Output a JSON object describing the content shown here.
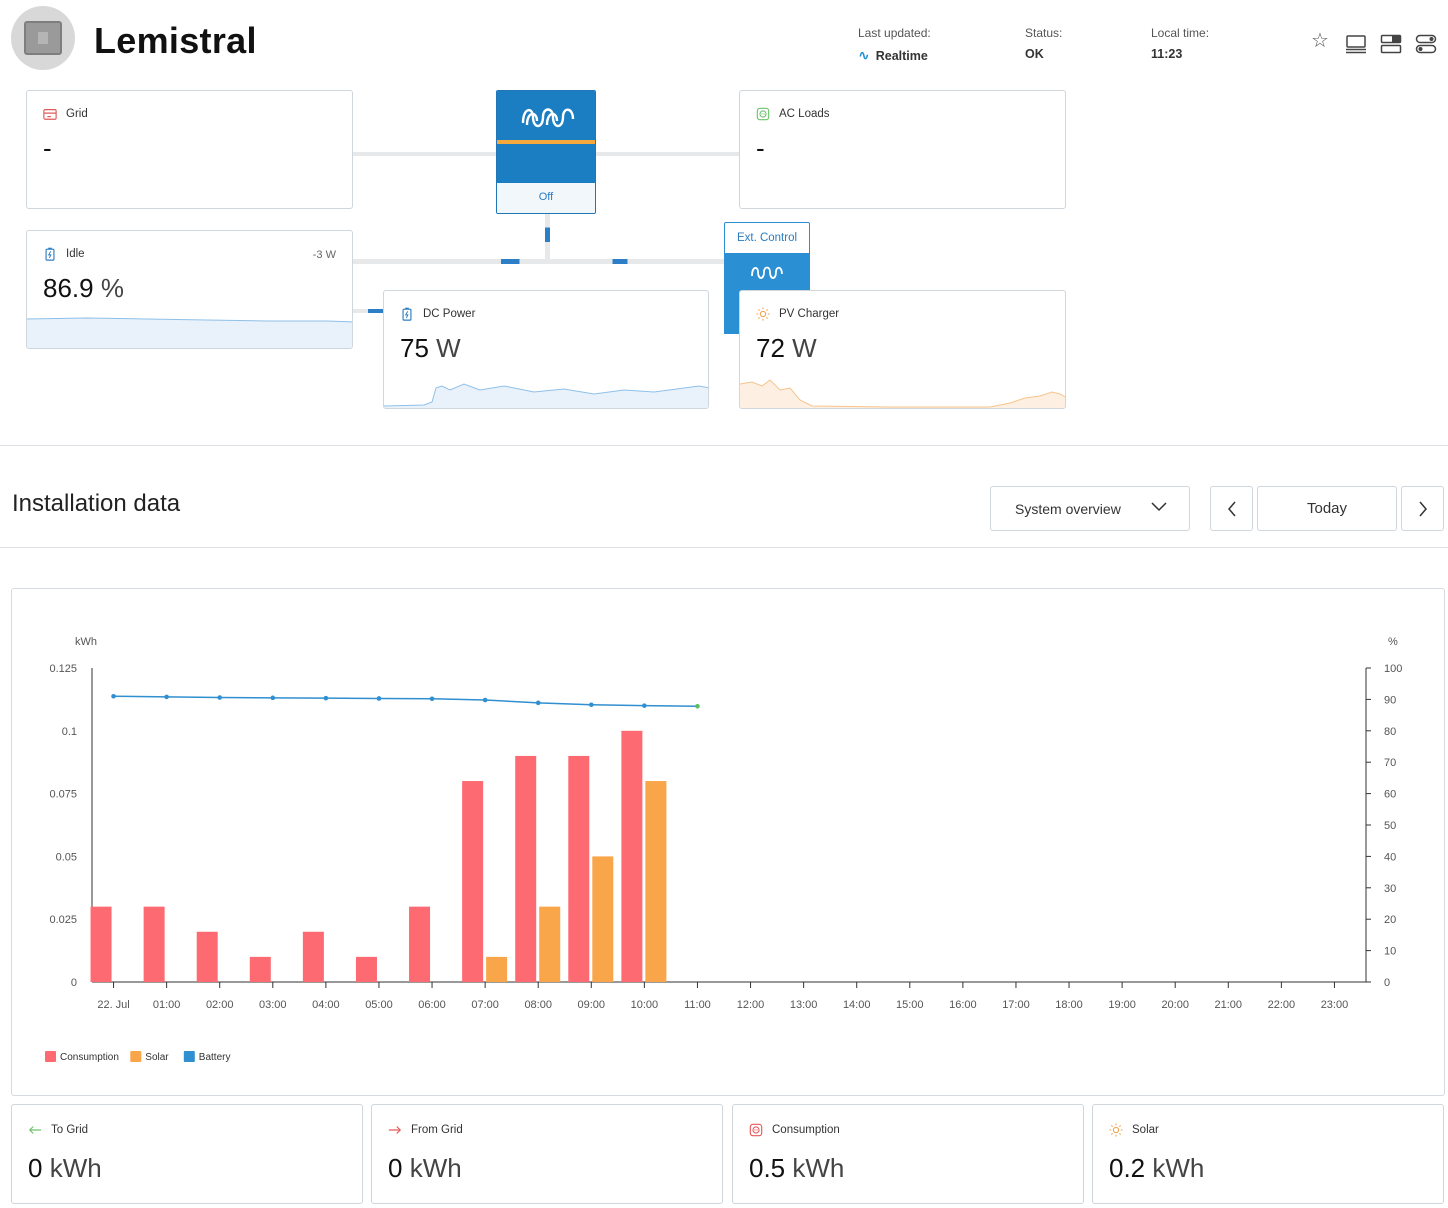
{
  "header": {
    "title": "Lemistral",
    "last_updated_label": "Last updated:",
    "last_updated_value": "Realtime",
    "status_label": "Status:",
    "status_value": "OK",
    "local_time_label": "Local time:",
    "local_time_value": "11:23"
  },
  "diagram": {
    "grid": {
      "label": "Grid",
      "value": "-"
    },
    "ac_loads": {
      "label": "AC Loads",
      "value": "-"
    },
    "inverter": {
      "state": "Off"
    },
    "battery": {
      "label": "Idle",
      "value": "86.9",
      "unit": "%",
      "power": "-3 W"
    },
    "dc_power": {
      "label": "DC Power",
      "value": "75",
      "unit": "W"
    },
    "pv_charger": {
      "label": "PV Charger",
      "value": "72",
      "unit": "W",
      "control_tag": "Ext. Control"
    }
  },
  "installation": {
    "title": "Installation data",
    "view_select": "System overview",
    "period_button": "Today"
  },
  "chart_data": {
    "type": "bar",
    "left_axis_unit": "kWh",
    "right_axis_unit": "%",
    "left_ylim": [
      0,
      0.125
    ],
    "right_ylim": [
      0,
      100
    ],
    "left_ticks": [
      "0",
      "0.025",
      "0.05",
      "0.075",
      "0.1",
      "0.125"
    ],
    "right_ticks": [
      "0",
      "10",
      "20",
      "30",
      "40",
      "50",
      "60",
      "70",
      "80",
      "90",
      "100"
    ],
    "categories": [
      "22. Jul",
      "01:00",
      "02:00",
      "03:00",
      "04:00",
      "05:00",
      "06:00",
      "07:00",
      "08:00",
      "09:00",
      "10:00",
      "11:00",
      "12:00",
      "13:00",
      "14:00",
      "15:00",
      "16:00",
      "17:00",
      "18:00",
      "19:00",
      "20:00",
      "21:00",
      "22:00",
      "23:00"
    ],
    "series": [
      {
        "name": "Consumption",
        "color": "#fd6a72",
        "axis": "left",
        "kind": "bar",
        "values": [
          0.03,
          0.03,
          0.02,
          0.01,
          0.02,
          0.01,
          0.03,
          0.08,
          0.09,
          0.09,
          0.1,
          null,
          null,
          null,
          null,
          null,
          null,
          null,
          null,
          null,
          null,
          null,
          null,
          null
        ]
      },
      {
        "name": "Solar",
        "color": "#f9a54a",
        "axis": "left",
        "kind": "bar",
        "values": [
          null,
          null,
          null,
          null,
          null,
          null,
          null,
          0.01,
          0.03,
          0.05,
          0.08,
          null,
          null,
          null,
          null,
          null,
          null,
          null,
          null,
          null,
          null,
          null,
          null,
          null
        ]
      },
      {
        "name": "Battery",
        "color": "#2f8fd0",
        "axis": "right",
        "kind": "line",
        "values": [
          91,
          90.8,
          90.6,
          90.5,
          90.4,
          90.3,
          90.2,
          89.8,
          88.9,
          88.3,
          88.0,
          87.8,
          null,
          null,
          null,
          null,
          null,
          null,
          null,
          null,
          null,
          null,
          null,
          null
        ]
      }
    ],
    "legend_position": "bottom-left",
    "grid": false
  },
  "stats": [
    {
      "label": "To Grid",
      "value": "0",
      "unit": "kWh",
      "icon": "arrow-left-icon",
      "color": "#6cc26c"
    },
    {
      "label": "From Grid",
      "value": "0",
      "unit": "kWh",
      "icon": "arrow-right-icon",
      "color": "#e85a5a"
    },
    {
      "label": "Consumption",
      "value": "0.5",
      "unit": "kWh",
      "icon": "consumption-icon",
      "color": "#e85a5a"
    },
    {
      "label": "Solar",
      "value": "0.2",
      "unit": "kWh",
      "icon": "sun-icon",
      "color": "#f5a24a"
    }
  ]
}
